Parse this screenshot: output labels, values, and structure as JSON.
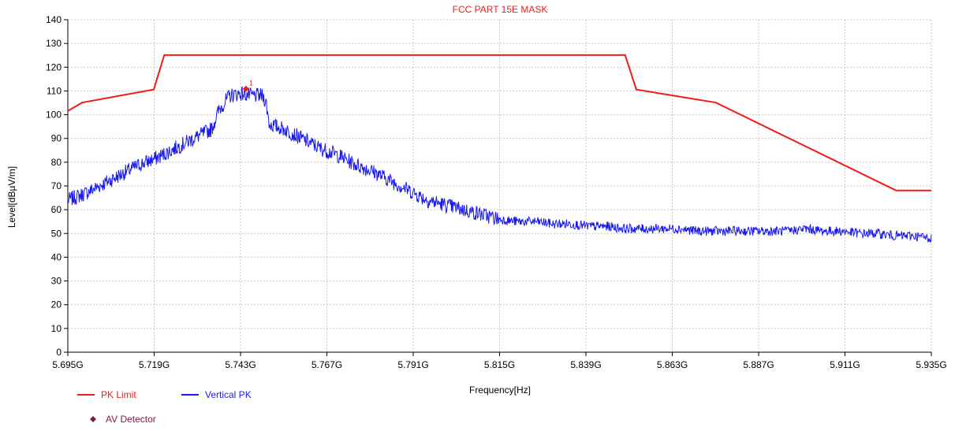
{
  "chart_data": {
    "type": "line",
    "title": "FCC PART 15E MASK",
    "xlabel": "Frequency[Hz]",
    "ylabel": "Level[dBµV/m]",
    "xlim": [
      5.695,
      5.935
    ],
    "ylim": [
      0,
      140
    ],
    "x_tick_values": [
      5.695,
      5.719,
      5.743,
      5.767,
      5.791,
      5.815,
      5.839,
      5.863,
      5.887,
      5.911,
      5.935
    ],
    "x_tick_labels": [
      "5.695G",
      "5.719G",
      "5.743G",
      "5.767G",
      "5.791G",
      "5.815G",
      "5.839G",
      "5.863G",
      "5.887G",
      "5.911G",
      "5.935G"
    ],
    "y_ticks": [
      0,
      10,
      20,
      30,
      40,
      50,
      60,
      70,
      80,
      90,
      100,
      110,
      120,
      130,
      140
    ],
    "grid": true,
    "legend_position": "bottom-left",
    "series": [
      {
        "name": "PK Limit",
        "color": "#ee1c1c",
        "x": [
          5.695,
          5.699,
          5.7189,
          5.7218,
          5.8499,
          5.853,
          5.8751,
          5.9252,
          5.935
        ],
        "y": [
          101.6,
          105.1,
          110.6,
          125.1,
          125.1,
          110.6,
          105.1,
          68.1,
          68.1
        ]
      },
      {
        "name": "Vertical PK",
        "color": "#1a1aee",
        "x": [
          5.695,
          5.7,
          5.705,
          5.71,
          5.715,
          5.72,
          5.725,
          5.73,
          5.735,
          5.737,
          5.74,
          5.743,
          5.746,
          5.749,
          5.75,
          5.751,
          5.755,
          5.76,
          5.765,
          5.77,
          5.775,
          5.78,
          5.785,
          5.79,
          5.795,
          5.8,
          5.805,
          5.81,
          5.815,
          5.82,
          5.825,
          5.83,
          5.835,
          5.84,
          5.845,
          5.85,
          5.855,
          5.86,
          5.865,
          5.87,
          5.875,
          5.88,
          5.885,
          5.89,
          5.895,
          5.9,
          5.905,
          5.91,
          5.915,
          5.92,
          5.925,
          5.93,
          5.935
        ],
        "y": [
          64,
          67,
          71,
          75,
          79,
          82,
          86,
          90,
          94,
          102,
          108,
          109,
          108,
          108,
          106,
          96,
          94,
          90,
          86,
          83,
          79,
          76,
          72,
          68,
          64,
          62,
          60,
          58,
          56,
          55,
          55,
          54,
          54,
          53,
          53,
          52,
          52,
          52,
          52,
          51,
          51,
          51,
          51,
          51,
          51,
          52,
          51,
          51,
          50,
          50,
          49,
          49,
          48
        ]
      }
    ],
    "markers": [
      {
        "name": "AV Detector",
        "label": "1",
        "x": 5.7445,
        "y": 110.9,
        "color": "#ee1c1c"
      }
    ],
    "legend": {
      "entries": [
        {
          "label": "PK Limit",
          "color": "#ee1c1c",
          "kind": "line"
        },
        {
          "label": "Vertical PK",
          "color": "#1a1aee",
          "kind": "line"
        },
        {
          "label": "AV Detector",
          "color": "#7a1a4a",
          "kind": "marker"
        }
      ]
    }
  }
}
